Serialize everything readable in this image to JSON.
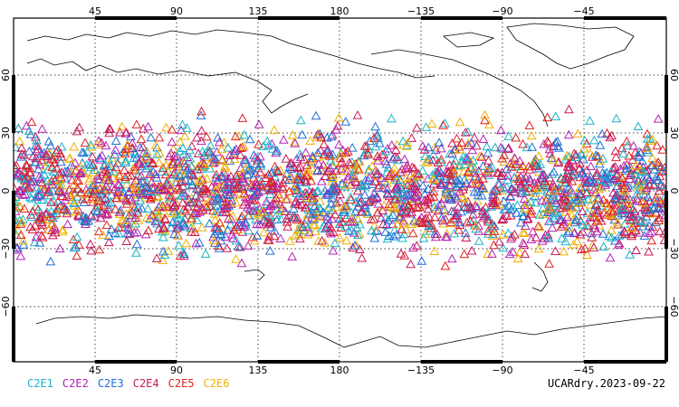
{
  "map": {
    "top_lon_labels": [
      "45",
      "90",
      "135",
      "180",
      "−135",
      "−90",
      "−45"
    ],
    "bottom_lon_labels": [
      "45",
      "90",
      "135",
      "180",
      "−135",
      "−90",
      "−45"
    ],
    "lat_labels": [
      "60",
      "30",
      "0",
      "−30",
      "−60"
    ],
    "marker": "triangle-icon",
    "lat_band_deg": [
      -45,
      45
    ]
  },
  "legend": {
    "items": [
      {
        "label": "C2E1",
        "color": "#19b3c8"
      },
      {
        "label": "C2E2",
        "color": "#b520b8"
      },
      {
        "label": "C2E3",
        "color": "#1f6fd6"
      },
      {
        "label": "C2E4",
        "color": "#c8185a"
      },
      {
        "label": "C2E5",
        "color": "#e02020"
      },
      {
        "label": "C2E6",
        "color": "#f0b000"
      }
    ]
  },
  "stamp": "UCARdry.2023-09-22"
}
